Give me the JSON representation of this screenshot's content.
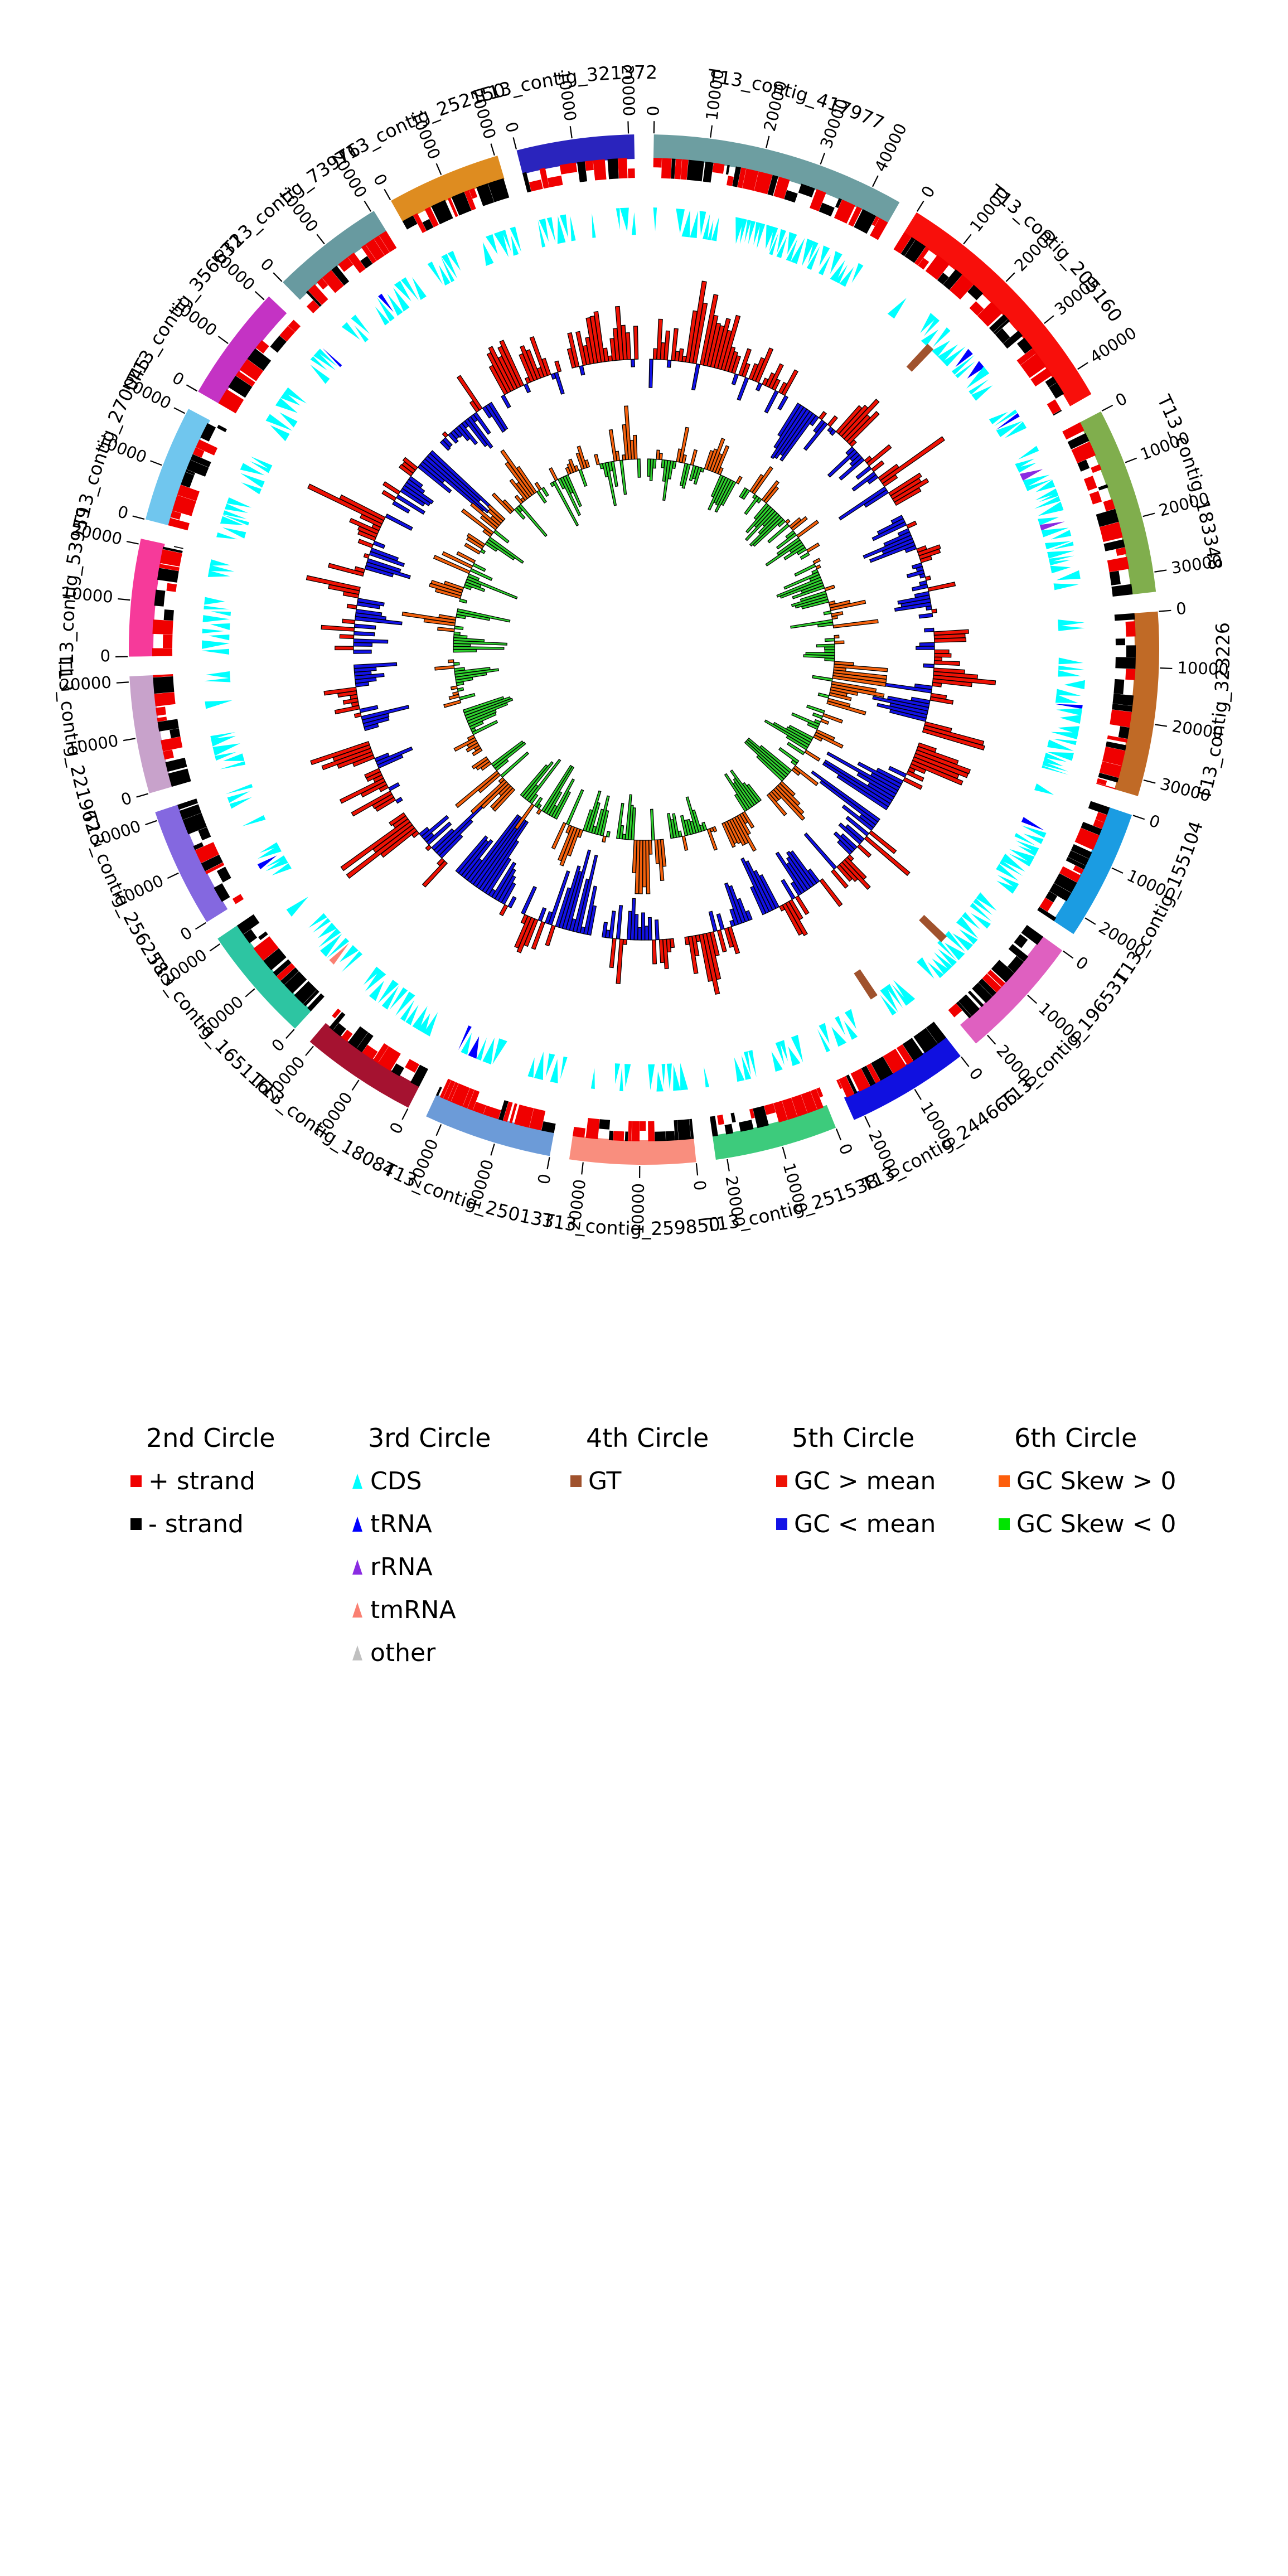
{
  "chart_data": {
    "type": "circos-genome-plot",
    "description": "Circular genome map of assembly T13: outer ring of contig ideograms with bp coordinate ticks; 2nd circle gene strands; 3rd circle feature triangles; 4th circle GT marks; 5th circle GC content bars; 6th circle GC skew bars.",
    "unit": "bp",
    "tick_interval_bp": 10000,
    "contigs": [
      {
        "name": "T13_contig_417977",
        "length_bp": 45500,
        "color": "#6d9ea1",
        "tick_labels": [
          "0",
          "10000",
          "20000",
          "30000",
          "40000"
        ]
      },
      {
        "name": "T13_contig_205160",
        "length_bp": 45000,
        "color": "#f80f0b",
        "tick_labels": [
          "0",
          "10000",
          "20000",
          "30000",
          "40000"
        ]
      },
      {
        "name": "T13_contig_183348",
        "length_bp": 33500,
        "color": "#80ae4d",
        "tick_labels": [
          "0",
          "10000",
          "20000",
          "30000"
        ]
      },
      {
        "name": "T13_contig_323226",
        "length_bp": 33000,
        "color": "#c06a26",
        "tick_labels": [
          "0",
          "10000",
          "20000",
          "30000"
        ]
      },
      {
        "name": "T13_contig_155104",
        "length_bp": 23500,
        "color": "#1b9ce2",
        "tick_labels": [
          "0",
          "10000",
          "20000"
        ]
      },
      {
        "name": "T13_contig_196531",
        "length_bp": 22500,
        "color": "#df60c0",
        "tick_labels": [
          "0",
          "10000",
          "20000"
        ]
      },
      {
        "name": "T13_contig_244666",
        "length_bp": 22000,
        "color": "#1010e0",
        "tick_labels": [
          "0",
          "10000",
          "20000"
        ]
      },
      {
        "name": "T13_contig_251538",
        "length_bp": 22000,
        "color": "#3dcb7c",
        "tick_labels": [
          "0",
          "10000",
          "20000"
        ]
      },
      {
        "name": "T13_contig_259850",
        "length_bp": 22500,
        "color": "#f98e7e",
        "tick_labels": [
          "0",
          "10000",
          "20000"
        ]
      },
      {
        "name": "T13_contig_250133",
        "length_bp": 23000,
        "color": "#6c9bd8",
        "tick_labels": [
          "0",
          "10000",
          "20000"
        ]
      },
      {
        "name": "T13_contig_18084",
        "length_bp": 21000,
        "color": "#a51230",
        "tick_labels": [
          "0",
          "10000",
          "20000"
        ]
      },
      {
        "name": "T13_contig_165116",
        "length_bp": 21000,
        "color": "#2dc5a2",
        "tick_labels": [
          "0",
          "10000",
          "20000"
        ]
      },
      {
        "name": "T13_contig_256258",
        "length_bp": 21500,
        "color": "#8468e0",
        "tick_labels": [
          "0",
          "10000",
          "20000"
        ]
      },
      {
        "name": "T13_contig_221962",
        "length_bp": 21000,
        "color": "#c8a2cb",
        "tick_labels": [
          "0",
          "10000",
          "20000"
        ]
      },
      {
        "name": "T13_contig_53959",
        "length_bp": 21000,
        "color": "#f63a9a",
        "tick_labels": [
          "0",
          "10000",
          "20000"
        ]
      },
      {
        "name": "T13_contig_270045",
        "length_bp": 21000,
        "color": "#70c6ee",
        "tick_labels": [
          "0",
          "10000",
          "20000"
        ]
      },
      {
        "name": "T13_contig_356632",
        "length_bp": 21000,
        "color": "#c433c4",
        "tick_labels": [
          "0",
          "10000",
          "20000"
        ]
      },
      {
        "name": "T13_contig_73976",
        "length_bp": 20500,
        "color": "#689aa0",
        "tick_labels": [
          "0",
          "10000",
          "20000"
        ]
      },
      {
        "name": "T13_contig_252150",
        "length_bp": 20500,
        "color": "#de8c20",
        "tick_labels": [
          "0",
          "10000",
          "20000"
        ]
      },
      {
        "name": "T13_contig_321372",
        "length_bp": 21000,
        "color": "#2a24bd",
        "tick_labels": [
          "0",
          "10000",
          "20000"
        ]
      }
    ],
    "circles": [
      {
        "circle": "1st (outer)",
        "content": "contig ideograms with bp coordinate ticks"
      },
      {
        "circle": "2nd",
        "content": "genes by strand",
        "categories": [
          {
            "label": "+ strand",
            "color": "#f00000"
          },
          {
            "label": "- strand",
            "color": "#000000"
          }
        ]
      },
      {
        "circle": "3rd",
        "content": "annotated features (triangles)",
        "categories": [
          {
            "label": "CDS",
            "color": "#00ffff"
          },
          {
            "label": "tRNA",
            "color": "#0000ff"
          },
          {
            "label": "rRNA",
            "color": "#8a2be2"
          },
          {
            "label": "tmRNA",
            "color": "#fa8072"
          },
          {
            "label": "other",
            "color": "#c0c0c0"
          }
        ]
      },
      {
        "circle": "4th",
        "content": "GT marks",
        "categories": [
          {
            "label": "GT",
            "color": "#a0522d"
          }
        ],
        "marks_angle_deg": [
          43.4,
          134.0,
          146.5
        ]
      },
      {
        "circle": "5th",
        "content": "GC content vs mean (bars out = above mean, in = below mean)",
        "categories": [
          {
            "label": "GC > mean",
            "color": "#ee1205"
          },
          {
            "label": "GC < mean",
            "color": "#1212e6"
          }
        ]
      },
      {
        "circle": "6th",
        "content": "GC skew (bars out = positive, in = negative)",
        "categories": [
          {
            "label": "GC Skew > 0",
            "color": "#f4610d"
          },
          {
            "label": "GC Skew < 0",
            "color": "#2ed12e"
          }
        ]
      }
    ]
  },
  "legend": {
    "columns": [
      {
        "header": "2nd Circle",
        "items": [
          {
            "label": "+ strand",
            "marker": "square",
            "color": "#f00000"
          },
          {
            "label": "- strand",
            "marker": "square",
            "color": "#000000"
          }
        ]
      },
      {
        "header": "3rd Circle",
        "items": [
          {
            "label": "CDS",
            "marker": "triangle",
            "color": "#00ffff"
          },
          {
            "label": "tRNA",
            "marker": "triangle",
            "color": "#0000ff"
          },
          {
            "label": "rRNA",
            "marker": "triangle",
            "color": "#8a2be2"
          },
          {
            "label": "tmRNA",
            "marker": "triangle",
            "color": "#fa8072"
          },
          {
            "label": "other",
            "marker": "triangle",
            "color": "#c0c0c0"
          }
        ]
      },
      {
        "header": "4th Circle",
        "items": [
          {
            "label": "GT",
            "marker": "square",
            "color": "#a0522d"
          }
        ]
      },
      {
        "header": "5th Circle",
        "items": [
          {
            "label": "GC > mean",
            "marker": "square",
            "color": "#ee1205"
          },
          {
            "label": "GC < mean",
            "marker": "square",
            "color": "#1212e6"
          }
        ]
      },
      {
        "header": "6th Circle",
        "items": [
          {
            "label": "GC Skew > 0",
            "marker": "square",
            "color": "#fd5e0c"
          },
          {
            "label": "GC Skew < 0",
            "marker": "square",
            "color": "#00e400"
          }
        ]
      }
    ]
  },
  "render": {
    "seed": 97
  }
}
